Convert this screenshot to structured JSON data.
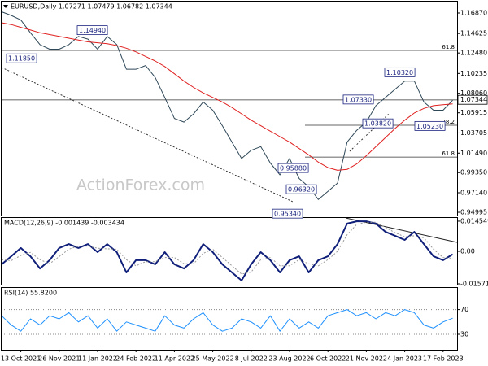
{
  "chart_data": [
    {
      "type": "line",
      "title": "EURUSD,Daily 1.07271 1.07479 1.06782 1.07344",
      "watermark": "ActionForex.com",
      "categories": [
        null,
        null,
        "13 Oct 2021",
        null,
        null,
        null,
        "26 Nov 2021",
        null,
        null,
        null,
        "11 Jan 2022",
        null,
        null,
        null,
        "24 Feb 2022",
        null,
        null,
        null,
        "11 Apr 2022",
        null,
        null,
        null,
        "25 May 2022",
        null,
        null,
        null,
        "8 Jul 2022",
        null,
        null,
        null,
        "23 Aug 2022",
        null,
        null,
        null,
        "6 Oct 2022",
        null,
        null,
        null,
        "21 Nov 2022",
        null,
        null,
        null,
        "4 Jan 2023",
        null,
        null,
        null,
        "17 Feb 2023",
        null
      ],
      "series": [
        {
          "color": "#2f4858",
          "values": [
            1.17,
            1.166,
            1.161,
            1.147,
            1.134,
            1.129,
            1.129,
            1.134,
            1.143,
            1.14,
            1.129,
            1.143,
            1.134,
            1.107,
            1.107,
            1.111,
            1.098,
            1.076,
            1.053,
            1.049,
            1.058,
            1.071,
            1.062,
            1.045,
            1.027,
            1.009,
            1.018,
            1.022,
            1.004,
            0.991,
            1.009,
            0.987,
            0.978,
            0.964,
            0.973,
            0.982,
            1.027,
            1.04,
            1.049,
            1.067,
            1.076,
            1.085,
            1.094,
            1.094,
            1.071,
            1.062,
            1.062,
            1.073
          ]
        },
        {
          "color": "#e02020",
          "values": [
            1.158,
            1.156,
            1.153,
            1.15,
            1.147,
            1.145,
            1.143,
            1.141,
            1.139,
            1.137,
            1.136,
            1.135,
            1.133,
            1.13,
            1.126,
            1.121,
            1.116,
            1.11,
            1.102,
            1.094,
            1.087,
            1.081,
            1.076,
            1.071,
            1.065,
            1.058,
            1.051,
            1.045,
            1.039,
            1.033,
            1.027,
            1.02,
            1.013,
            1.005,
            0.999,
            0.996,
            0.997,
            1.003,
            1.012,
            1.022,
            1.032,
            1.042,
            1.051,
            1.059,
            1.064,
            1.067,
            1.068,
            1.069
          ]
        }
      ],
      "ylim": [
        0.9464,
        1.1812
      ],
      "yticks": [
        {
          "value": 1.1687,
          "label": "1.16870"
        },
        {
          "value": 1.14625,
          "label": "1.14625"
        },
        {
          "value": 1.1248,
          "label": "1.12480"
        },
        {
          "value": 1.10235,
          "label": "1.10235"
        },
        {
          "value": 1.0806,
          "label": "1.08060"
        },
        {
          "value": 1.05915,
          "label": "1.05915"
        },
        {
          "value": 1.03705,
          "label": "1.03705"
        },
        {
          "value": 1.0149,
          "label": "1.01490"
        },
        {
          "value": 0.9935,
          "label": "0.99350"
        },
        {
          "value": 0.9714,
          "label": "0.97140"
        },
        {
          "value": 0.94995,
          "label": "0.94995"
        }
      ],
      "last_price": {
        "value": 1.07344,
        "label": "1.07344"
      },
      "levels": [
        {
          "value": 1.1276,
          "label": "61.8"
        },
        {
          "value": 1.0733
        },
        {
          "value": 1.0455,
          "label": "38.2"
        },
        {
          "value": 1.0106,
          "label": "61.8"
        }
      ],
      "annotations": [
        {
          "value": 1.1494,
          "label": "1.14940"
        },
        {
          "value": 1.1185,
          "label": "1.11850"
        },
        {
          "value": 1.0733,
          "label": "1.07330"
        },
        {
          "value": 1.0382,
          "label": "1.03820"
        },
        {
          "value": 1.1032,
          "label": "1.10320"
        },
        {
          "value": 1.0523,
          "label": "1.05230"
        },
        {
          "value": 0.9588,
          "label": "0.95880"
        },
        {
          "value": 0.9632,
          "label": "0.96320"
        },
        {
          "value": 0.9534,
          "label": "0.95340"
        }
      ]
    },
    {
      "type": "line",
      "title": "MACD(12,26,9) -0.001439 -0.003434",
      "series": [
        {
          "color": "#10207a",
          "values": [
            -0.0063,
            -0.0024,
            0.0016,
            -0.0024,
            -0.0083,
            -0.0043,
            0.0016,
            0.0035,
            0.0016,
            0.0035,
            -0.0004,
            0.0035,
            -0.0004,
            -0.0102,
            -0.0043,
            -0.0043,
            -0.0063,
            -0.0004,
            -0.0063,
            -0.0083,
            -0.0043,
            0.0035,
            -0.0004,
            -0.0063,
            -0.0102,
            -0.0141,
            -0.0063,
            -0.0004,
            -0.0043,
            -0.0102,
            -0.0043,
            -0.0024,
            -0.0102,
            -0.0043,
            -0.0024,
            0.0035,
            0.0134,
            0.0145,
            0.0145,
            0.0134,
            0.0094,
            0.0075,
            0.0055,
            0.0094,
            0.0035,
            -0.0024,
            -0.0043,
            -0.0014
          ]
        },
        {
          "color": "#999999",
          "style": "dotted",
          "values": [
            -0.004,
            -0.0045,
            -0.002,
            -0.0005,
            -0.004,
            -0.006,
            -0.0025,
            0.001,
            0.0025,
            0.0025,
            0.0015,
            0.0012,
            0.001,
            -0.004,
            -0.007,
            -0.005,
            -0.005,
            -0.003,
            -0.003,
            -0.006,
            -0.006,
            -0.001,
            0.001,
            -0.003,
            -0.007,
            -0.011,
            -0.01,
            -0.004,
            -0.003,
            -0.007,
            -0.007,
            -0.004,
            -0.006,
            -0.007,
            -0.004,
            0.0,
            0.008,
            0.013,
            0.014,
            0.014,
            0.0115,
            0.009,
            0.007,
            0.0075,
            0.0065,
            0.001,
            -0.003,
            -0.0034
          ]
        }
      ],
      "ylim": [
        -0.0165,
        0.0161
      ],
      "yticks": [
        0.014549,
        {
          "value": 0,
          "label": "0.00"
        },
        -0.015712
      ]
    },
    {
      "type": "line",
      "title": "RSI(14) 55.8200",
      "series": [
        {
          "color": "#1e90ff",
          "values": [
            60,
            45,
            35,
            55,
            45,
            60,
            55,
            65,
            50,
            60,
            40,
            55,
            35,
            50,
            45,
            40,
            35,
            60,
            45,
            40,
            55,
            65,
            45,
            35,
            40,
            55,
            50,
            40,
            60,
            35,
            55,
            40,
            50,
            40,
            60,
            65,
            70,
            60,
            65,
            55,
            65,
            60,
            70,
            65,
            45,
            40,
            50,
            56
          ]
        }
      ],
      "ylim": [
        5,
        105
      ],
      "yticks": [
        70,
        30
      ],
      "grid": true
    }
  ]
}
